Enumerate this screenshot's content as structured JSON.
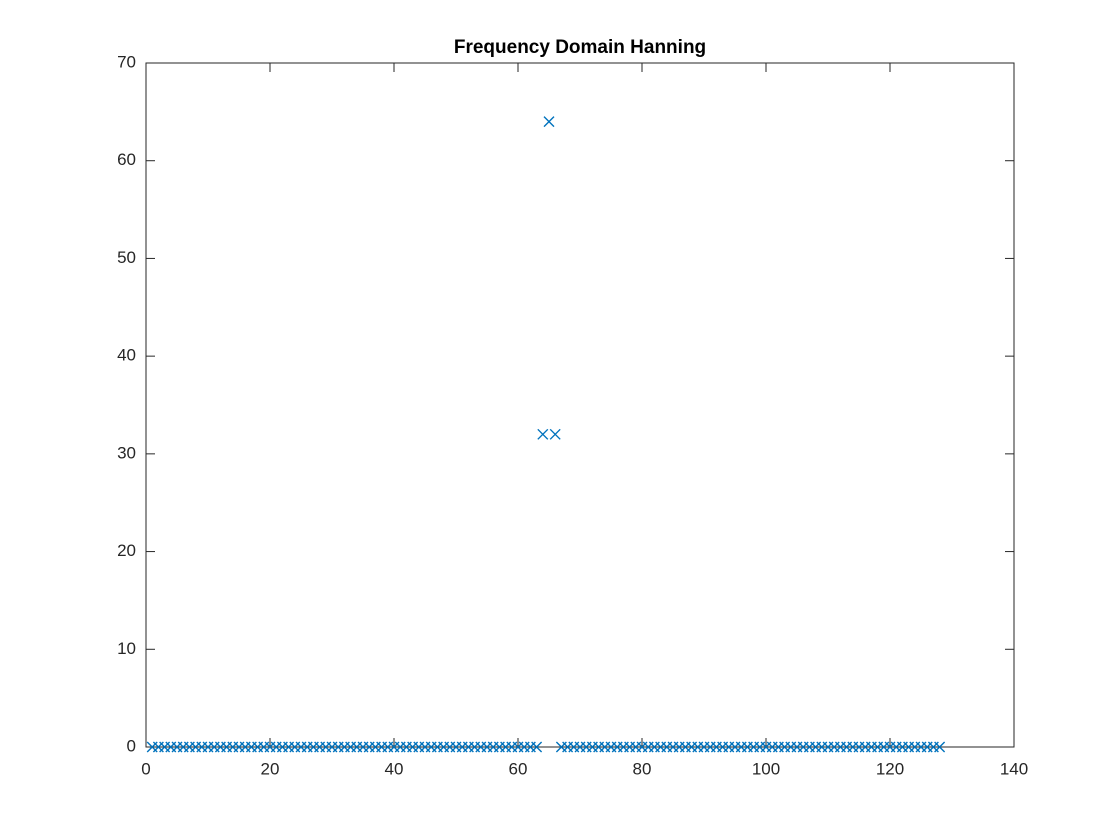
{
  "chart_data": {
    "type": "scatter",
    "title": "Frequency Domain Hanning",
    "marker": "x",
    "color": "#0072bd",
    "x": [
      1,
      2,
      3,
      4,
      5,
      6,
      7,
      8,
      9,
      10,
      11,
      12,
      13,
      14,
      15,
      16,
      17,
      18,
      19,
      20,
      21,
      22,
      23,
      24,
      25,
      26,
      27,
      28,
      29,
      30,
      31,
      32,
      33,
      34,
      35,
      36,
      37,
      38,
      39,
      40,
      41,
      42,
      43,
      44,
      45,
      46,
      47,
      48,
      49,
      50,
      51,
      52,
      53,
      54,
      55,
      56,
      57,
      58,
      59,
      60,
      61,
      62,
      63,
      64,
      65,
      66,
      67,
      68,
      69,
      70,
      71,
      72,
      73,
      74,
      75,
      76,
      77,
      78,
      79,
      80,
      81,
      82,
      83,
      84,
      85,
      86,
      87,
      88,
      89,
      90,
      91,
      92,
      93,
      94,
      95,
      96,
      97,
      98,
      99,
      100,
      101,
      102,
      103,
      104,
      105,
      106,
      107,
      108,
      109,
      110,
      111,
      112,
      113,
      114,
      115,
      116,
      117,
      118,
      119,
      120,
      121,
      122,
      123,
      124,
      125,
      126,
      127,
      128
    ],
    "values": [
      0,
      0,
      0,
      0,
      0,
      0,
      0,
      0,
      0,
      0,
      0,
      0,
      0,
      0,
      0,
      0,
      0,
      0,
      0,
      0,
      0,
      0,
      0,
      0,
      0,
      0,
      0,
      0,
      0,
      0,
      0,
      0,
      0,
      0,
      0,
      0,
      0,
      0,
      0,
      0,
      0,
      0,
      0,
      0,
      0,
      0,
      0,
      0,
      0,
      0,
      0,
      0,
      0,
      0,
      0,
      0,
      0,
      0,
      0,
      0,
      0,
      0,
      0,
      32,
      64,
      32,
      0,
      0,
      0,
      0,
      0,
      0,
      0,
      0,
      0,
      0,
      0,
      0,
      0,
      0,
      0,
      0,
      0,
      0,
      0,
      0,
      0,
      0,
      0,
      0,
      0,
      0,
      0,
      0,
      0,
      0,
      0,
      0,
      0,
      0,
      0,
      0,
      0,
      0,
      0,
      0,
      0,
      0,
      0,
      0,
      0,
      0,
      0,
      0,
      0,
      0,
      0,
      0,
      0,
      0,
      0,
      0,
      0,
      0,
      0,
      0,
      0,
      0
    ],
    "xlim": [
      0,
      140
    ],
    "xticks": [
      0,
      20,
      40,
      60,
      80,
      100,
      120,
      140
    ],
    "ylim": [
      0,
      70
    ],
    "yticks": [
      0,
      10,
      20,
      30,
      40,
      50,
      60,
      70
    ]
  }
}
